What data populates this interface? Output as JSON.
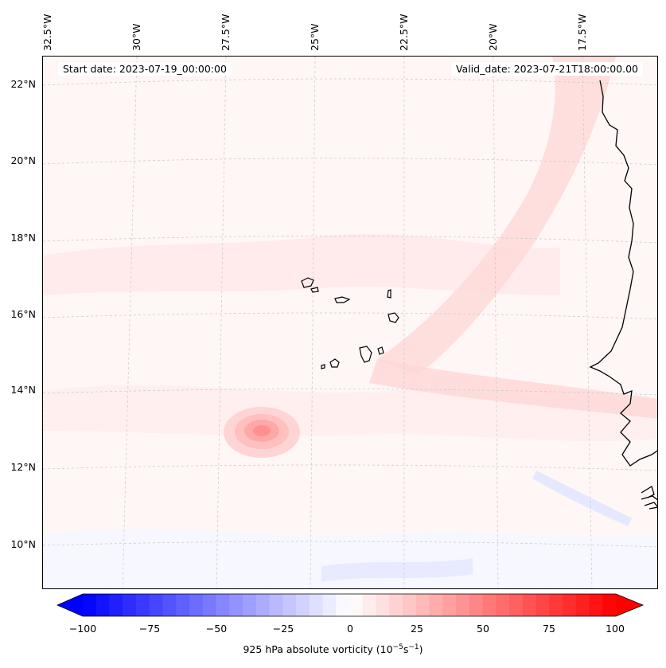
{
  "map": {
    "start_date": "Start date: 2023-07-19_00:00:00",
    "valid_date": "Valid_date: 2023-07-21T18:00:00.00",
    "lat_labels": [
      "22°N",
      "20°N",
      "18°N",
      "16°N",
      "14°N",
      "12°N",
      "10°N"
    ],
    "lon_labels": [
      "32.5°W",
      "30°W",
      "27.5°W",
      "25°W",
      "22.5°W",
      "20°W",
      "17.5°W"
    ],
    "features": {
      "coastline": "West Africa coastline",
      "islands": "Cape Verde Islands",
      "vortex": "Vorticity maximum"
    }
  },
  "colorbar": {
    "label": "925 hPa absolute vorticity (10",
    "label_exp1": "−5",
    "label_mid": "s",
    "label_exp2": "−1",
    "label_end": ")",
    "ticks": [
      "−100",
      "−75",
      "−50",
      "−25",
      "0",
      "25",
      "50",
      "75",
      "100"
    ],
    "min": -100,
    "max": 100,
    "levels": 40,
    "colors": {
      "negative": "#0000ff",
      "zero": "#ffffff",
      "positive": "#ff0000"
    }
  }
}
